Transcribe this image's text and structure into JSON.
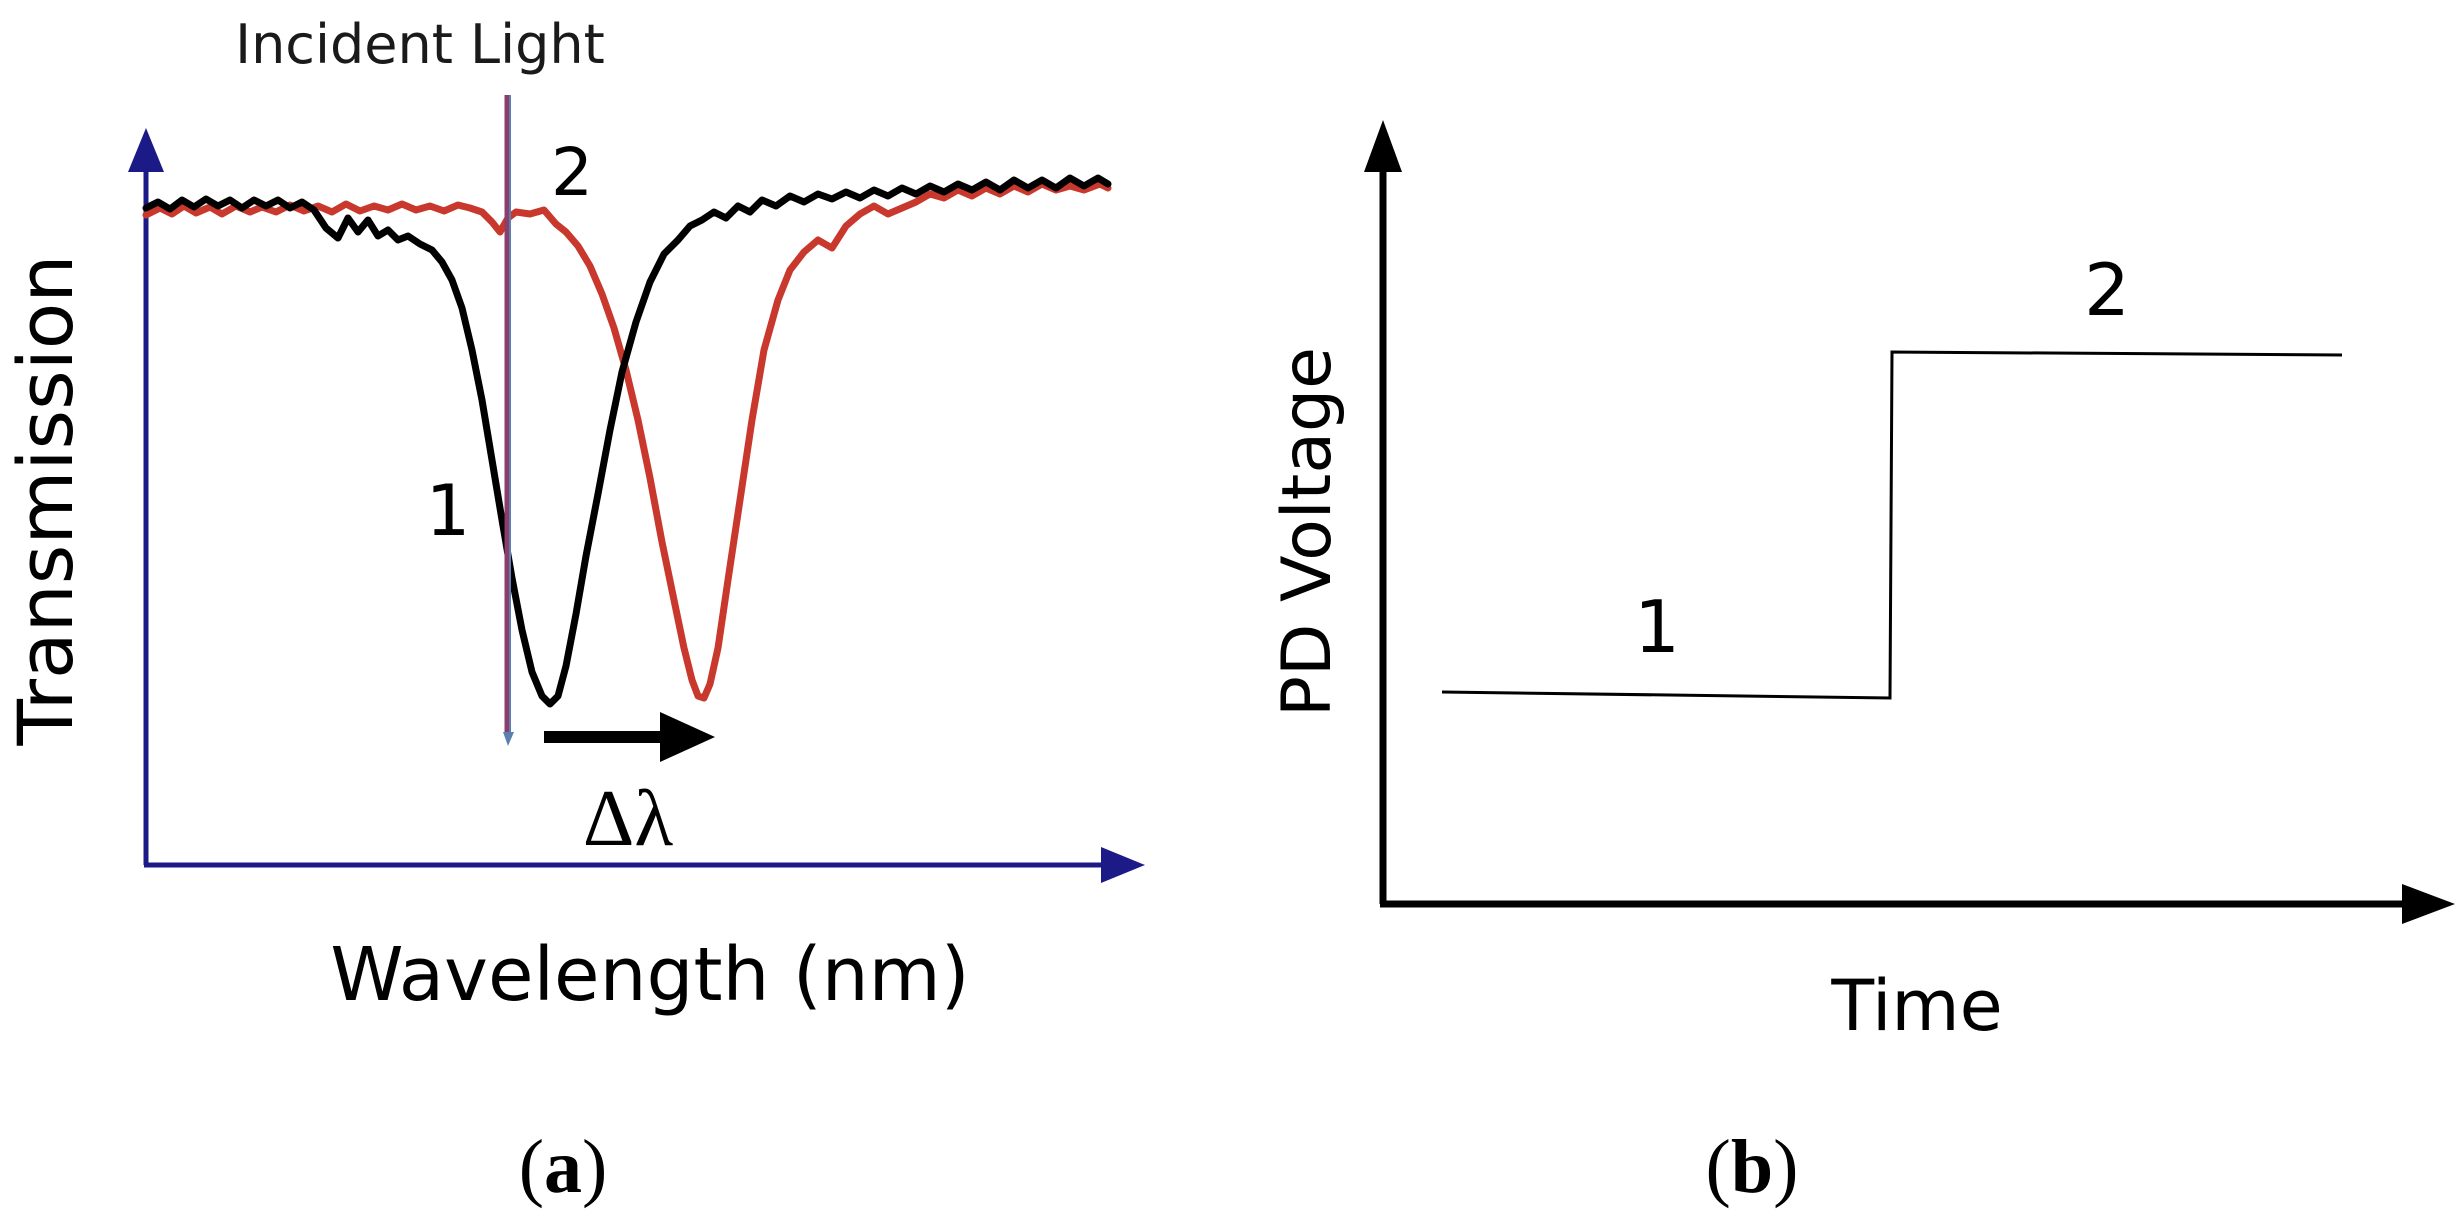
{
  "panel_a": {
    "incident_label": "Incident Light",
    "x_axis_label": "Wavelength (nm)",
    "y_axis_label": "Transmission",
    "marker_1": "1",
    "marker_2": "2",
    "shift_label": "Δλ",
    "caption_open": "(",
    "caption_letter": "a",
    "caption_close": ")",
    "colors": {
      "axis": "#1c1a86",
      "black_curve": "#000000",
      "red_curve": "#c8382c",
      "incident_line": "#8c3d6c"
    }
  },
  "panel_b": {
    "x_axis_label": "Time",
    "y_axis_label": "PD Voltage",
    "level_1": "1",
    "level_2": "2",
    "caption_open": "(",
    "caption_letter": "b",
    "caption_close": ")",
    "colors": {
      "axis": "#000000",
      "trace": "#000000"
    }
  }
}
